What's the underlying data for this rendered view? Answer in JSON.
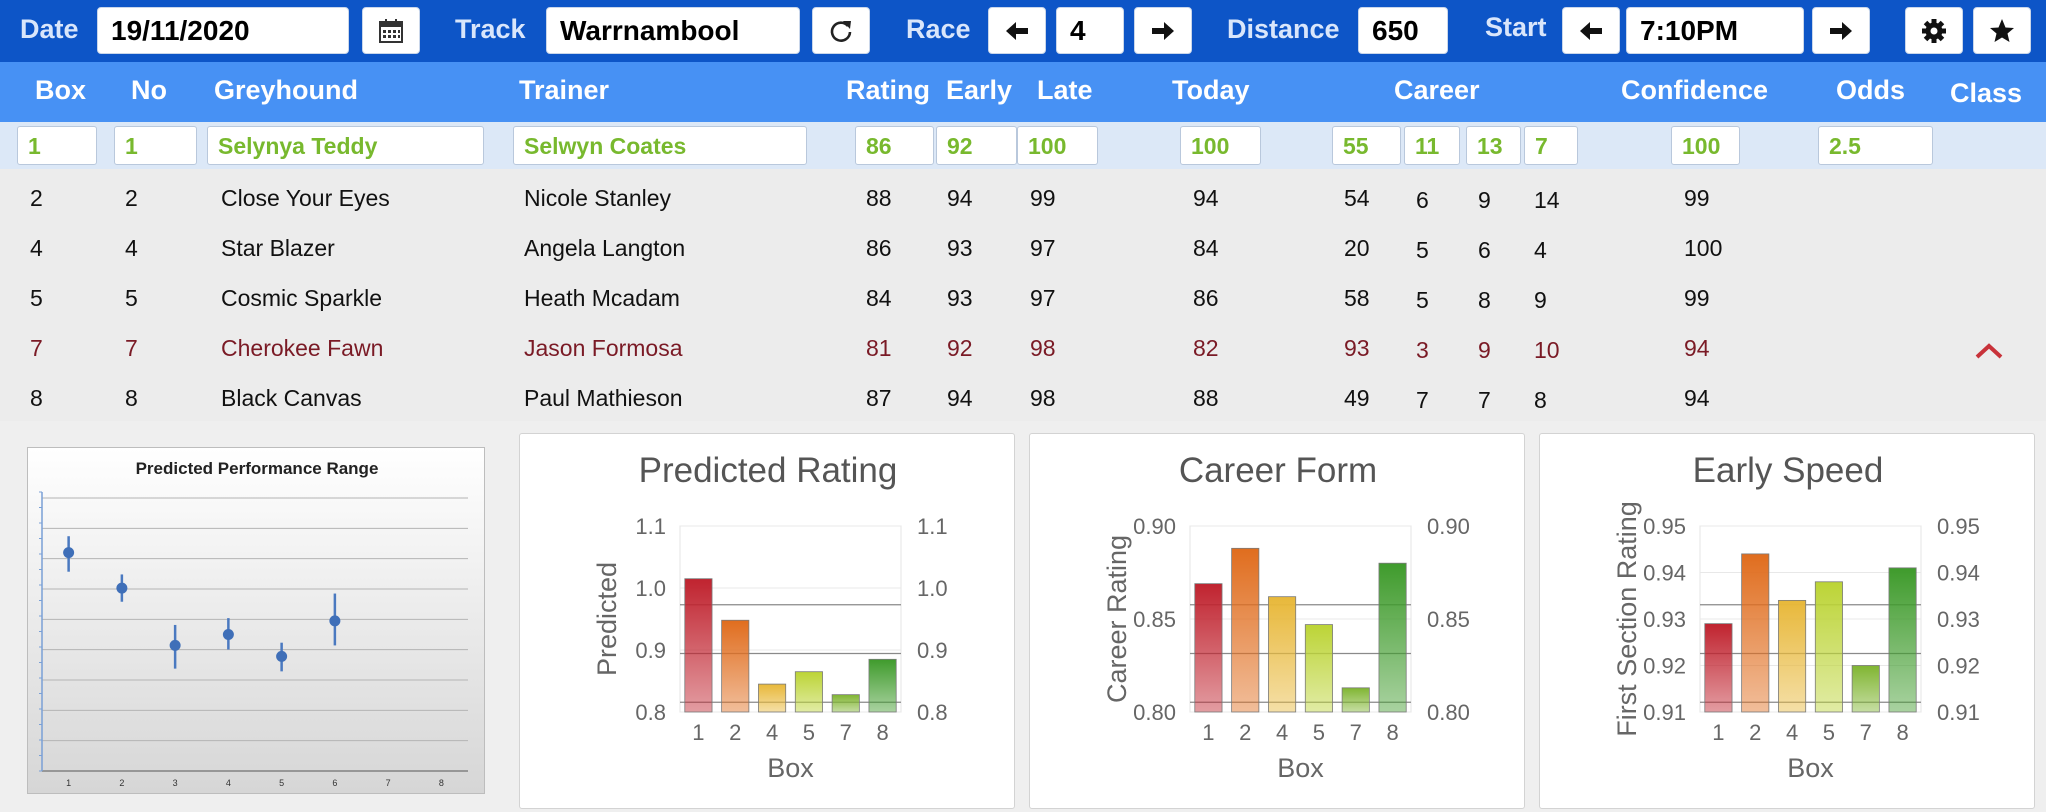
{
  "toolbar": {
    "date_label": "Date",
    "date_value": "19/11/2020",
    "track_label": "Track",
    "track_value": "Warrnambool",
    "race_label": "Race",
    "race_value": "4",
    "distance_label": "Distance",
    "distance_value": "650",
    "start_label": "Start",
    "start_value": "7:10PM",
    "icons": [
      "calendar-icon",
      "refresh-icon",
      "arrow-left-icon",
      "arrow-right-icon",
      "gear-icon",
      "star-icon"
    ]
  },
  "table": {
    "headers": {
      "box": "Box",
      "no": "No",
      "greyhound": "Greyhound",
      "trainer": "Trainer",
      "rating": "Rating",
      "early": "Early",
      "late": "Late",
      "today": "Today",
      "career": "Career",
      "confidence": "Confidence",
      "odds": "Odds",
      "class": "Class"
    },
    "selected": {
      "box": "1",
      "no": "1",
      "greyhound": "Selynya Teddy",
      "trainer": "Selwyn Coates",
      "rating": "86",
      "early": "92",
      "late": "100",
      "today": "100",
      "career1": "55",
      "career2": "11",
      "career3": "13",
      "career4": "7",
      "confidence": "100",
      "odds": "2.5"
    },
    "rows": [
      {
        "box": "2",
        "no": "2",
        "greyhound": "Close Your Eyes",
        "trainer": "Nicole Stanley",
        "rating": "88",
        "early": "94",
        "late": "99",
        "today": "94",
        "career1": "54",
        "career2": "6",
        "career3": "9",
        "career4": "14",
        "confidence": "99"
      },
      {
        "box": "4",
        "no": "4",
        "greyhound": "Star Blazer",
        "trainer": "Angela Langton",
        "rating": "86",
        "early": "93",
        "late": "97",
        "today": "84",
        "career1": "20",
        "career2": "5",
        "career3": "6",
        "career4": "4",
        "confidence": "100"
      },
      {
        "box": "5",
        "no": "5",
        "greyhound": "Cosmic Sparkle",
        "trainer": "Heath Mcadam",
        "rating": "84",
        "early": "93",
        "late": "97",
        "today": "86",
        "career1": "58",
        "career2": "5",
        "career3": "8",
        "career4": "9",
        "confidence": "99"
      },
      {
        "box": "7",
        "no": "7",
        "greyhound": "Cherokee Fawn",
        "trainer": "Jason Formosa",
        "rating": "81",
        "early": "92",
        "late": "98",
        "today": "82",
        "career1": "93",
        "career2": "3",
        "career3": "9",
        "career4": "10",
        "confidence": "94"
      },
      {
        "box": "8",
        "no": "8",
        "greyhound": "Black Canvas",
        "trainer": "Paul Mathieson",
        "rating": "87",
        "early": "94",
        "late": "98",
        "today": "88",
        "career1": "49",
        "career2": "7",
        "career3": "7",
        "career4": "8",
        "confidence": "94"
      }
    ],
    "class_indicator_icon": "chevron-up-icon"
  },
  "colors": {
    "toolbar_bg": "#0d55c7",
    "header_bg": "#4791f4",
    "selected_text": "#78b92e",
    "highlight_row_text": "#7a1a25",
    "class_up": "#c8323a"
  },
  "chart_data": [
    {
      "type": "scatter",
      "title": "Predicted Performance Range",
      "x_ticks": [
        "1",
        "2",
        "3",
        "4",
        "5",
        "6",
        "7",
        "8"
      ],
      "points": [
        {
          "x": 1,
          "y": 0.8,
          "low": 0.73,
          "high": 0.86
        },
        {
          "x": 2,
          "y": 0.67,
          "low": 0.62,
          "high": 0.72
        },
        {
          "x": 3,
          "y": 0.46,
          "low": 0.375,
          "high": 0.535
        },
        {
          "x": 4,
          "y": 0.5,
          "low": 0.445,
          "high": 0.56
        },
        {
          "x": 5,
          "y": 0.42,
          "low": 0.365,
          "high": 0.47
        },
        {
          "x": 6,
          "y": 0.55,
          "low": 0.46,
          "high": 0.65
        }
      ],
      "ylim": [
        0,
        1
      ],
      "xlim": [
        0.5,
        8.5
      ],
      "grid": true,
      "legend": "none"
    },
    {
      "type": "bar",
      "title": "Predicted Rating",
      "xlabel": "Box",
      "ylabel": "Predicted",
      "categories": [
        "1",
        "2",
        "4",
        "5",
        "7",
        "8"
      ],
      "values": [
        1.015,
        0.948,
        0.845,
        0.865,
        0.828,
        0.885
      ],
      "ylim": [
        0.8,
        1.1
      ],
      "y_ticks": [
        "0.8",
        "0.9",
        "1.0",
        "1.1"
      ],
      "colors": [
        "#c0232f",
        "#e06d1e",
        "#e8b83a",
        "#bcd436",
        "#80b532",
        "#3f9b2c"
      ],
      "grid": true
    },
    {
      "type": "bar",
      "title": "Career Form",
      "xlabel": "Box",
      "ylabel": "Career Rating",
      "categories": [
        "1",
        "2",
        "4",
        "5",
        "7",
        "8"
      ],
      "values": [
        0.869,
        0.888,
        0.862,
        0.847,
        0.813,
        0.88
      ],
      "ylim": [
        0.8,
        0.9
      ],
      "y_ticks": [
        "0.80",
        "0.85",
        "0.90"
      ],
      "colors": [
        "#c0232f",
        "#e06d1e",
        "#e8b83a",
        "#bcd436",
        "#80b532",
        "#3f9b2c"
      ],
      "grid": true
    },
    {
      "type": "bar",
      "title": "Early Speed",
      "xlabel": "Box",
      "ylabel": "First Section Rating",
      "categories": [
        "1",
        "2",
        "4",
        "5",
        "7",
        "8"
      ],
      "values": [
        0.929,
        0.944,
        0.934,
        0.938,
        0.92,
        0.941
      ],
      "ylim": [
        0.91,
        0.95
      ],
      "y_ticks": [
        "0.91",
        "0.92",
        "0.93",
        "0.94",
        "0.95"
      ],
      "colors": [
        "#c0232f",
        "#e06d1e",
        "#e8b83a",
        "#bcd436",
        "#80b532",
        "#3f9b2c"
      ],
      "grid": true
    }
  ]
}
